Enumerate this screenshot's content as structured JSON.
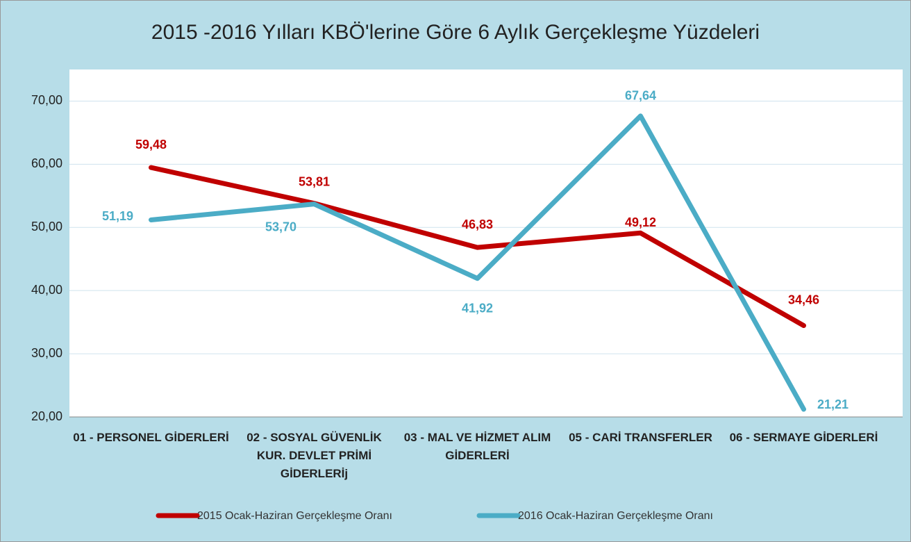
{
  "chart_data": {
    "type": "line",
    "title": "2015 -2016 Yılları KBÖ'lerine Göre 6 Aylık Gerçekleşme Yüzdeleri",
    "categories": [
      "01 - PERSONEL GİDERLERİ",
      "02 - SOSYAL GÜVENLİK KUR. DEVLET PRİMİ GİDERLERİj",
      "03 - MAL VE HİZMET ALIM GİDERLERİ",
      "05 - CARİ TRANSFERLER",
      "06 - SERMAYE GİDERLERİ"
    ],
    "series": [
      {
        "name": "2015 Ocak-Haziran Gerçekleşme Oranı",
        "color": "#c00000",
        "values": [
          59.48,
          53.81,
          46.83,
          49.12,
          34.46
        ],
        "value_labels": [
          "59,48",
          "53,81",
          "46,83",
          "49,12",
          "34,46"
        ]
      },
      {
        "name": "2016 Ocak-Haziran Gerçekleşme Oranı",
        "color": "#4bacc6",
        "values": [
          51.19,
          53.7,
          41.92,
          67.64,
          21.21
        ],
        "value_labels": [
          "51,19",
          "53,70",
          "41,92",
          "67,64",
          "21,21"
        ]
      }
    ],
    "ylim": [
      20,
      75
    ],
    "yticks": [
      {
        "value": 20,
        "label": "20,00"
      },
      {
        "value": 30,
        "label": "30,00"
      },
      {
        "value": 40,
        "label": "40,00"
      },
      {
        "value": 50,
        "label": "50,00"
      },
      {
        "value": 60,
        "label": "60,00"
      },
      {
        "value": 70,
        "label": "70,00"
      }
    ],
    "grid": true,
    "legend": "bottom"
  }
}
